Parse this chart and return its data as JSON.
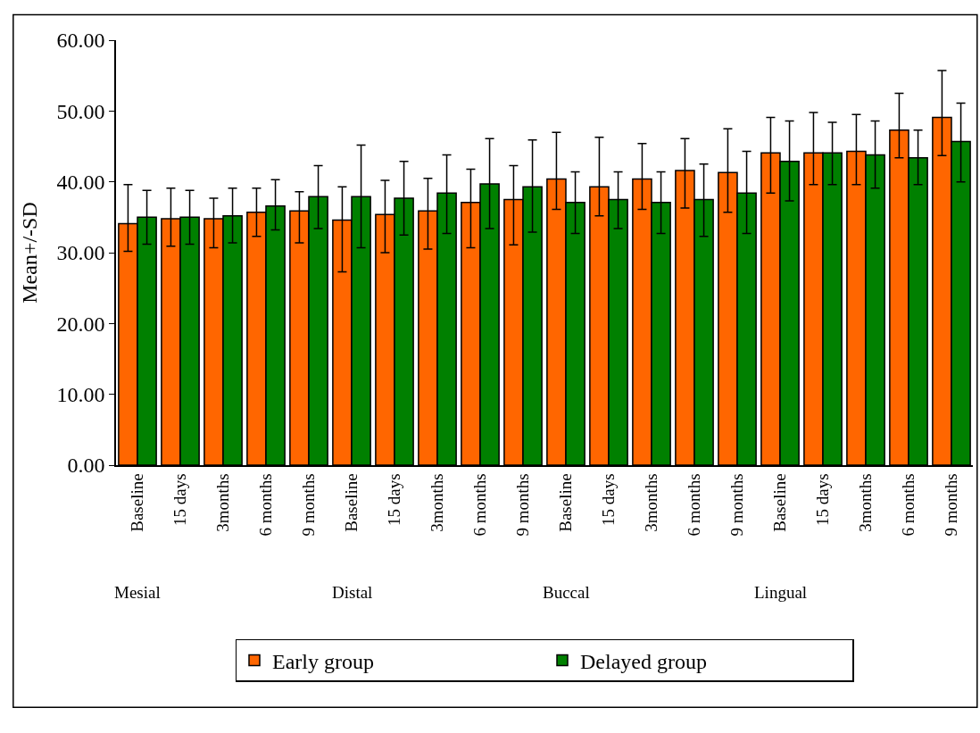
{
  "chart_data": {
    "type": "bar",
    "ylabel": "Mean+/-SD",
    "categories": [
      "Baseline",
      "15 days",
      "3months",
      "6 months",
      "9 months",
      "Baseline",
      "15 days",
      "3months",
      "6 months",
      "9 months",
      "Baseline",
      "15 days",
      "3months",
      "6 months",
      "9 months",
      "Baseline",
      "15 days",
      "3months",
      "6 months",
      "9 months"
    ],
    "series": [
      {
        "name": "Early group",
        "color": "#ff6600",
        "values": [
          34.1,
          34.8,
          34.8,
          35.7,
          35.9,
          34.6,
          35.4,
          35.9,
          37.1,
          37.5,
          40.4,
          39.3,
          40.4,
          41.6,
          41.3,
          44.1,
          44.1,
          44.3,
          47.3,
          49.1
        ],
        "errors": [
          [
            30.2,
            39.6
          ],
          [
            30.9,
            39.1
          ],
          [
            30.7,
            37.7
          ],
          [
            32.3,
            39.1
          ],
          [
            31.4,
            38.6
          ],
          [
            27.3,
            39.3
          ],
          [
            30.0,
            40.2
          ],
          [
            30.5,
            40.5
          ],
          [
            30.7,
            41.8
          ],
          [
            31.1,
            42.3
          ],
          [
            36.1,
            47.0
          ],
          [
            35.2,
            46.3
          ],
          [
            36.1,
            45.4
          ],
          [
            36.3,
            46.1
          ],
          [
            35.7,
            47.5
          ],
          [
            38.4,
            49.1
          ],
          [
            39.6,
            49.8
          ],
          [
            39.6,
            49.5
          ],
          [
            43.4,
            52.5
          ],
          [
            43.7,
            55.7
          ]
        ]
      },
      {
        "name": "Delayed group",
        "color": "#008000",
        "values": [
          35.0,
          35.0,
          35.2,
          36.6,
          37.9,
          37.9,
          37.7,
          38.4,
          39.7,
          39.3,
          37.1,
          37.5,
          37.1,
          37.5,
          38.4,
          42.9,
          44.1,
          43.8,
          43.4,
          45.7
        ],
        "errors": [
          [
            31.2,
            38.8
          ],
          [
            31.2,
            38.8
          ],
          [
            31.4,
            39.1
          ],
          [
            33.2,
            40.3
          ],
          [
            33.4,
            42.3
          ],
          [
            30.7,
            45.2
          ],
          [
            32.5,
            42.9
          ],
          [
            32.7,
            43.8
          ],
          [
            33.4,
            46.1
          ],
          [
            32.9,
            45.9
          ],
          [
            32.7,
            41.4
          ],
          [
            33.4,
            41.4
          ],
          [
            32.7,
            41.4
          ],
          [
            32.3,
            42.5
          ],
          [
            32.7,
            44.3
          ],
          [
            37.3,
            48.6
          ],
          [
            39.6,
            48.4
          ],
          [
            39.1,
            48.6
          ],
          [
            39.6,
            47.3
          ],
          [
            40.0,
            51.1
          ]
        ]
      }
    ],
    "ylim": [
      0,
      60
    ],
    "yticks": [
      {
        "value": 0,
        "label": "0.00"
      },
      {
        "value": 10,
        "label": "10.00"
      },
      {
        "value": 20,
        "label": "20.00"
      },
      {
        "value": 30,
        "label": "30.00"
      },
      {
        "value": 40,
        "label": "40.00"
      },
      {
        "value": 50,
        "label": "50.00"
      },
      {
        "value": 60,
        "label": "60.00"
      }
    ],
    "annotations": [
      "Mesial",
      "Distal",
      "Buccal",
      "Lingual"
    ],
    "legend": "bottom"
  }
}
